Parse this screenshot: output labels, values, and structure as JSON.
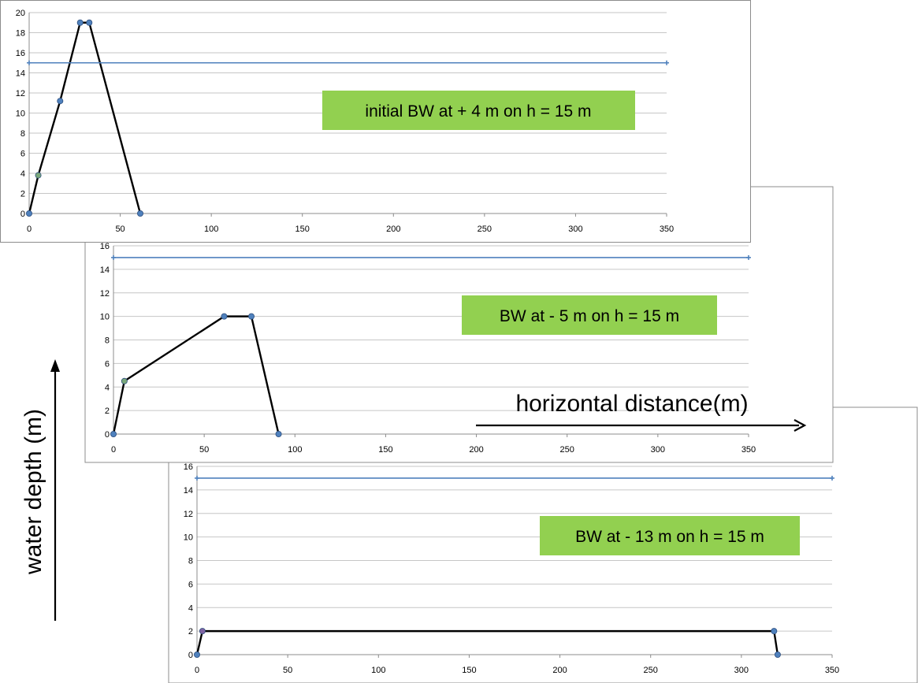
{
  "chart_data": [
    {
      "type": "line",
      "title": "",
      "annotation": "initial BW at + 4 m on h = 15 m",
      "xlim": [
        0,
        350
      ],
      "ylim": [
        0,
        20
      ],
      "x_ticks": [
        0,
        50,
        100,
        150,
        200,
        250,
        300,
        350
      ],
      "y_ticks": [
        0,
        2,
        4,
        6,
        8,
        10,
        12,
        14,
        16,
        18,
        20
      ],
      "grid": true,
      "series": [
        {
          "role": "profile",
          "color": "#000000",
          "points": [
            [
              0,
              0
            ],
            [
              5,
              3.8
            ],
            [
              17,
              11.2
            ],
            [
              28,
              19
            ],
            [
              33,
              19
            ],
            [
              61,
              0
            ]
          ],
          "marker_colors": [
            "#4f81bd",
            "#7aa87a",
            "#4f81bd",
            "#4f81bd",
            "#4f81bd",
            "#4f81bd"
          ]
        },
        {
          "role": "water-level",
          "color": "#4f81bd",
          "points": [
            [
              0,
              15
            ],
            [
              350,
              15
            ]
          ]
        }
      ]
    },
    {
      "type": "line",
      "title": "",
      "annotation": "BW at -  5 m on h = 15 m",
      "xlim": [
        0,
        350
      ],
      "ylim": [
        0,
        16
      ],
      "x_ticks": [
        0,
        50,
        100,
        150,
        200,
        250,
        300,
        350
      ],
      "y_ticks": [
        0,
        2,
        4,
        6,
        8,
        10,
        12,
        14,
        16
      ],
      "grid": true,
      "series": [
        {
          "role": "profile",
          "color": "#000000",
          "points": [
            [
              0,
              0
            ],
            [
              6,
              4.5
            ],
            [
              61,
              10
            ],
            [
              76,
              10
            ],
            [
              91,
              0
            ]
          ],
          "marker_colors": [
            "#4f81bd",
            "#7aa87a",
            "#4f81bd",
            "#4f81bd",
            "#4f81bd"
          ]
        },
        {
          "role": "water-level",
          "color": "#4f81bd",
          "points": [
            [
              0,
              15
            ],
            [
              350,
              15
            ]
          ]
        }
      ]
    },
    {
      "type": "line",
      "title": "",
      "annotation": "BW at - 13 m on h = 15 m",
      "xlim": [
        0,
        350
      ],
      "ylim": [
        0,
        16
      ],
      "x_ticks": [
        0,
        50,
        100,
        150,
        200,
        250,
        300,
        350
      ],
      "y_ticks": [
        0,
        2,
        4,
        6,
        8,
        10,
        12,
        14,
        16
      ],
      "grid": true,
      "series": [
        {
          "role": "profile",
          "color": "#000000",
          "points": [
            [
              0,
              0
            ],
            [
              3,
              2
            ],
            [
              318,
              2
            ],
            [
              320,
              0
            ]
          ],
          "marker_colors": [
            "#4f81bd",
            "#8064a2",
            "#4f81bd",
            "#4f81bd"
          ]
        },
        {
          "role": "water-level",
          "color": "#4f81bd",
          "points": [
            [
              0,
              15
            ],
            [
              350,
              15
            ]
          ]
        }
      ]
    }
  ],
  "labels": {
    "y_axis": "water depth (m)",
    "x_axis": "horizontal distance(m)"
  }
}
